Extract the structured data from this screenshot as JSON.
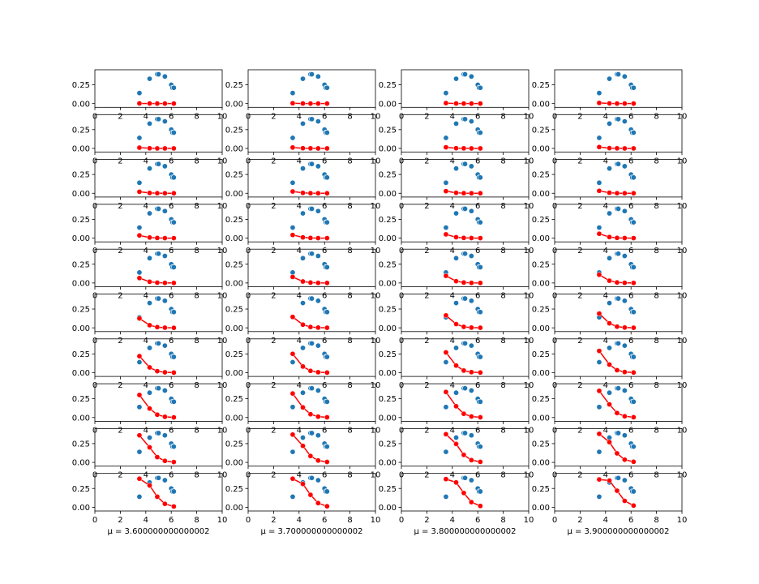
{
  "chart_data": {
    "type": "scatter",
    "layout": {
      "rows": 10,
      "cols": 4
    },
    "xlim": [
      0,
      10
    ],
    "ylim": [
      -0.05,
      0.45
    ],
    "x_ticks": [
      0,
      2,
      4,
      6,
      8,
      10
    ],
    "y_ticks": [
      0.0,
      0.25
    ],
    "y_tick_labels": [
      "0.00",
      "0.25"
    ],
    "column_xlabels": [
      "μ = 3.600000000000002",
      "μ = 3.700000000000002",
      "μ = 3.800000000000002",
      "μ = 3.900000000000002"
    ],
    "colors": {
      "scatter": "#1f77b4",
      "line": "#ff0000"
    },
    "observed": {
      "x": [
        3.5,
        4.3,
        4.9,
        5.0,
        5.5,
        6.0,
        6.1,
        6.2
      ],
      "y": [
        0.14,
        0.33,
        0.39,
        0.39,
        0.36,
        0.25,
        0.21,
        0.21
      ]
    },
    "fitted_x": [
      3.5,
      4.3,
      4.9,
      5.5,
      6.2
    ],
    "fitted_series": [
      [
        [
          0.002,
          0.001,
          0.0,
          0.0,
          0.0
        ],
        [
          0.004,
          0.001,
          0.0,
          0.0,
          0.0
        ],
        [
          0.006,
          0.001,
          0.0,
          0.0,
          0.0
        ],
        [
          0.008,
          0.002,
          0.0,
          0.0,
          0.0
        ]
      ],
      [
        [
          0.01,
          0.002,
          0.0,
          0.0,
          0.0
        ],
        [
          0.012,
          0.003,
          0.001,
          0.0,
          0.0
        ],
        [
          0.015,
          0.003,
          0.001,
          0.0,
          0.0
        ],
        [
          0.018,
          0.004,
          0.001,
          0.0,
          0.0
        ]
      ],
      [
        [
          0.02,
          0.004,
          0.001,
          0.0,
          0.0
        ],
        [
          0.024,
          0.005,
          0.001,
          0.0,
          0.0
        ],
        [
          0.028,
          0.006,
          0.001,
          0.0,
          0.0
        ],
        [
          0.032,
          0.007,
          0.001,
          0.0,
          0.0
        ]
      ],
      [
        [
          0.036,
          0.008,
          0.002,
          0.0,
          0.0
        ],
        [
          0.042,
          0.01,
          0.002,
          0.0,
          0.0
        ],
        [
          0.05,
          0.012,
          0.003,
          0.001,
          0.0
        ],
        [
          0.058,
          0.014,
          0.003,
          0.001,
          0.0
        ]
      ],
      [
        [
          0.065,
          0.016,
          0.004,
          0.001,
          0.0
        ],
        [
          0.08,
          0.02,
          0.005,
          0.001,
          0.0
        ],
        [
          0.095,
          0.024,
          0.006,
          0.001,
          0.0
        ],
        [
          0.11,
          0.03,
          0.007,
          0.002,
          0.0
        ]
      ],
      [
        [
          0.125,
          0.035,
          0.009,
          0.002,
          0.0
        ],
        [
          0.145,
          0.042,
          0.011,
          0.003,
          0.001
        ],
        [
          0.165,
          0.05,
          0.013,
          0.003,
          0.001
        ],
        [
          0.19,
          0.06,
          0.016,
          0.004,
          0.001
        ]
      ],
      [
        [
          0.22,
          0.07,
          0.02,
          0.005,
          0.001
        ],
        [
          0.25,
          0.082,
          0.024,
          0.006,
          0.001
        ],
        [
          0.27,
          0.095,
          0.028,
          0.007,
          0.002
        ],
        [
          0.29,
          0.108,
          0.033,
          0.009,
          0.002
        ]
      ],
      [
        [
          0.3,
          0.12,
          0.038,
          0.01,
          0.002
        ],
        [
          0.32,
          0.135,
          0.044,
          0.012,
          0.003
        ],
        [
          0.34,
          0.15,
          0.05,
          0.014,
          0.003
        ],
        [
          0.355,
          0.175,
          0.06,
          0.017,
          0.004
        ]
      ],
      [
        [
          0.36,
          0.2,
          0.07,
          0.02,
          0.005
        ],
        [
          0.37,
          0.22,
          0.085,
          0.025,
          0.006
        ],
        [
          0.375,
          0.245,
          0.1,
          0.03,
          0.007
        ],
        [
          0.38,
          0.27,
          0.12,
          0.036,
          0.008
        ]
      ],
      [
        [
          0.38,
          0.29,
          0.14,
          0.045,
          0.01
        ],
        [
          0.38,
          0.31,
          0.165,
          0.055,
          0.013
        ],
        [
          0.375,
          0.33,
          0.19,
          0.068,
          0.017
        ],
        [
          0.37,
          0.355,
          0.22,
          0.085,
          0.022
        ]
      ]
    ]
  }
}
